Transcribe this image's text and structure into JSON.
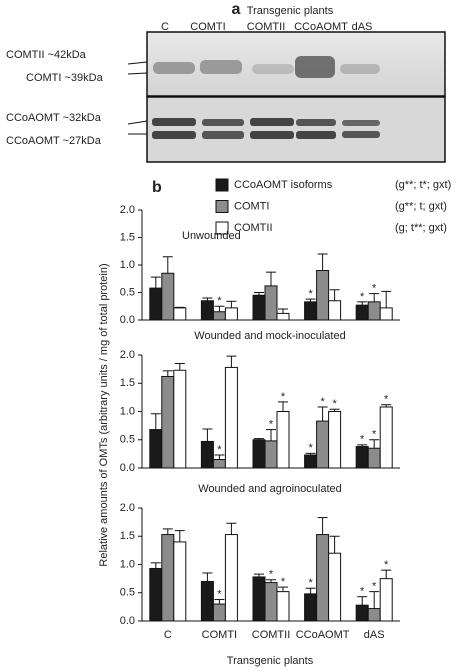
{
  "panel_a": {
    "label": "a",
    "header": "Transgenic plants",
    "lanes": [
      "C",
      "COMTI",
      "COMTII",
      "CCoAOMT",
      "dAS"
    ],
    "bands": [
      "COMTII ~42kDa",
      "COMTI ~39kDa",
      "CCoAOMT ~32kDa",
      "CCoAOMT ~27kDa"
    ]
  },
  "panel_b": {
    "label": "b",
    "y_label": "Relative amounts of OMTs (arbitrary units / mg of total protein)",
    "x_label": "Transgenic plants",
    "legend_notes": [
      "(g**; t*; gxt)",
      "(g**; t; gxt)",
      "(g; t**; gxt)"
    ]
  },
  "chart_data": [
    {
      "type": "bar",
      "title": "Unwounded",
      "ylim": [
        0,
        2
      ],
      "yticks": [
        {
          "value": 0,
          "label": "0.0"
        },
        0.5,
        {
          "value": 1,
          "label": "1.0"
        },
        1.5,
        {
          "value": 2,
          "label": "2.0"
        }
      ],
      "series": [
        {
          "name": "CCoAOMT isoforms",
          "color": "#1a1a1a",
          "values": [
            0.58,
            0.35,
            0.45,
            0.33,
            0.27
          ],
          "errors": [
            0.2,
            0.05,
            0.05,
            0.05,
            0.06
          ],
          "significance": [
            null,
            null,
            null,
            "*",
            "*"
          ]
        },
        {
          "name": "COMTI",
          "color": "#8c8c8c",
          "values": [
            0.85,
            0.15,
            0.62,
            0.9,
            0.33
          ],
          "errors": [
            0.3,
            0.1,
            0.25,
            0.3,
            0.15
          ],
          "significance": [
            null,
            "*",
            null,
            null,
            "*"
          ]
        },
        {
          "name": "COMTII",
          "color": "#ffffff",
          "values": [
            0.22,
            0.22,
            0.12,
            0.35,
            0.22
          ],
          "errors": [
            0.01,
            0.12,
            0.08,
            0.2,
            0.3
          ],
          "significance": [
            null,
            null,
            null,
            null,
            null
          ]
        }
      ]
    },
    {
      "type": "bar",
      "title": "Wounded and mock-inoculated",
      "ylim": [
        0,
        2
      ],
      "yticks": [
        {
          "value": 0,
          "label": "0.0"
        },
        0.5,
        {
          "value": 1,
          "label": "1.0"
        },
        1.5,
        {
          "value": 2,
          "label": "2.0"
        }
      ],
      "series": [
        {
          "color": "#1a1a1a",
          "values": [
            0.68,
            0.47,
            0.5,
            0.23,
            0.38
          ],
          "errors": [
            0.28,
            0.22,
            0.02,
            0.03,
            0.03
          ],
          "significance": [
            null,
            null,
            null,
            "*",
            "*"
          ]
        },
        {
          "color": "#8c8c8c",
          "values": [
            1.62,
            0.15,
            0.48,
            0.83,
            0.35
          ],
          "errors": [
            0.1,
            0.08,
            0.2,
            0.25,
            0.15
          ],
          "significance": [
            null,
            "*",
            "*",
            "*",
            "*"
          ]
        },
        {
          "color": "#ffffff",
          "values": [
            1.73,
            1.78,
            1.0,
            1.0,
            1.08
          ],
          "errors": [
            0.12,
            0.2,
            0.17,
            0.04,
            0.04
          ],
          "significance": [
            null,
            null,
            "*",
            "*",
            "*"
          ]
        }
      ]
    },
    {
      "type": "bar",
      "title": "Wounded and agroinoculated",
      "categories": [
        "C",
        "COMTI",
        "COMTII",
        "CCoAOMT",
        "dAS"
      ],
      "ylim": [
        0,
        2
      ],
      "yticks": [
        {
          "value": 0,
          "label": "0.0"
        },
        0.5,
        {
          "value": 1,
          "label": "1.0"
        },
        1.5,
        {
          "value": 2,
          "label": "2.0"
        }
      ],
      "series": [
        {
          "color": "#1a1a1a",
          "values": [
            0.93,
            0.7,
            0.78,
            0.48,
            0.28
          ],
          "errors": [
            0.1,
            0.15,
            0.05,
            0.1,
            0.15
          ],
          "significance": [
            null,
            null,
            null,
            "*",
            "*"
          ]
        },
        {
          "color": "#8c8c8c",
          "values": [
            1.53,
            0.3,
            0.68,
            1.53,
            0.22
          ],
          "errors": [
            0.1,
            0.08,
            0.05,
            0.3,
            0.3
          ],
          "significance": [
            null,
            "*",
            "*",
            null,
            "*"
          ]
        },
        {
          "color": "#ffffff",
          "values": [
            1.4,
            1.53,
            0.52,
            1.2,
            0.75
          ],
          "errors": [
            0.2,
            0.2,
            0.08,
            0.3,
            0.15
          ],
          "significance": [
            null,
            null,
            "*",
            null,
            "*"
          ]
        }
      ]
    }
  ]
}
